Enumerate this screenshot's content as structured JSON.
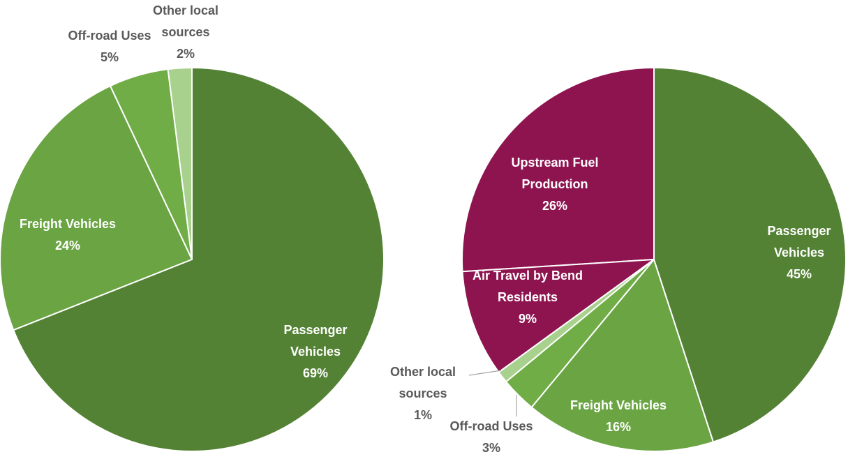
{
  "chart_data": [
    {
      "type": "pie",
      "categories": [
        "Passenger Vehicles",
        "Freight Vehicles",
        "Off-road Uses",
        "Other local sources"
      ],
      "values": [
        69,
        24,
        5,
        2
      ],
      "value_labels": [
        "69%",
        "24%",
        "5%",
        "2%"
      ],
      "colors": [
        "#548235",
        "#6aa443",
        "#70ad47",
        "#a9d18e"
      ]
    },
    {
      "type": "pie",
      "categories": [
        "Passenger Vehicles",
        "Freight Vehicles",
        "Off-road Uses",
        "Other local sources",
        "Air Travel by Bend Residents",
        "Upstream Fuel Production"
      ],
      "values": [
        45,
        16,
        3,
        1,
        9,
        26
      ],
      "value_labels": [
        "45%",
        "16%",
        "3%",
        "1%",
        "9%",
        "26%"
      ],
      "colors": [
        "#548235",
        "#6aa443",
        "#70ad47",
        "#a9d18e",
        "#8e1450",
        "#8e1450"
      ]
    }
  ]
}
